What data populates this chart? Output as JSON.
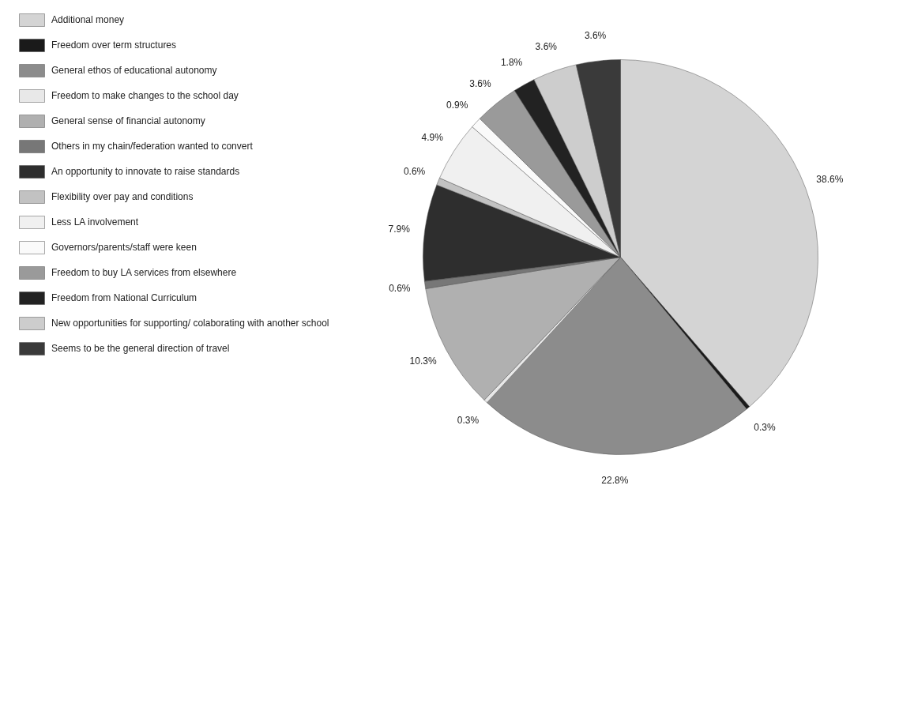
{
  "chart_data": {
    "type": "pie",
    "categories": [
      "Additional money",
      "Freedom over term structures",
      "General ethos of educational autonomy",
      "Freedom to make changes to the school day",
      "General sense of financial autonomy",
      "Others in my chain/federation wanted to convert",
      "An opportunity to innovate to raise standards",
      "Flexibility over pay and conditions",
      "Less LA involvement",
      "Governors/parents/staff were keen",
      "Freedom to buy LA services from elsewhere",
      "Freedom from National Curriculum",
      "New opportunities for supporting/ colaborating with another school",
      "Seems to be the general direction of travel"
    ],
    "values": [
      38.6,
      0.3,
      22.8,
      0.3,
      10.3,
      0.6,
      7.9,
      0.6,
      4.9,
      0.9,
      3.6,
      1.8,
      3.6,
      3.6
    ],
    "value_labels": [
      "38.6%",
      "0.3%",
      "22.8%",
      "0.3%",
      "10.3%",
      "0.6%",
      "7.9%",
      "0.6%",
      "4.9%",
      "0.9%",
      "3.6%",
      "1.8%",
      "3.6%",
      "3.6%"
    ],
    "colors": [
      "#d4d4d4",
      "#1a1a1a",
      "#8c8c8c",
      "#e8e8e8",
      "#b0b0b0",
      "#777777",
      "#2e2e2e",
      "#c2c2c2",
      "#f0f0f0",
      "#fafafa",
      "#9a9a9a",
      "#222222",
      "#cdcdcd",
      "#3a3a3a"
    ],
    "legend": "left"
  }
}
